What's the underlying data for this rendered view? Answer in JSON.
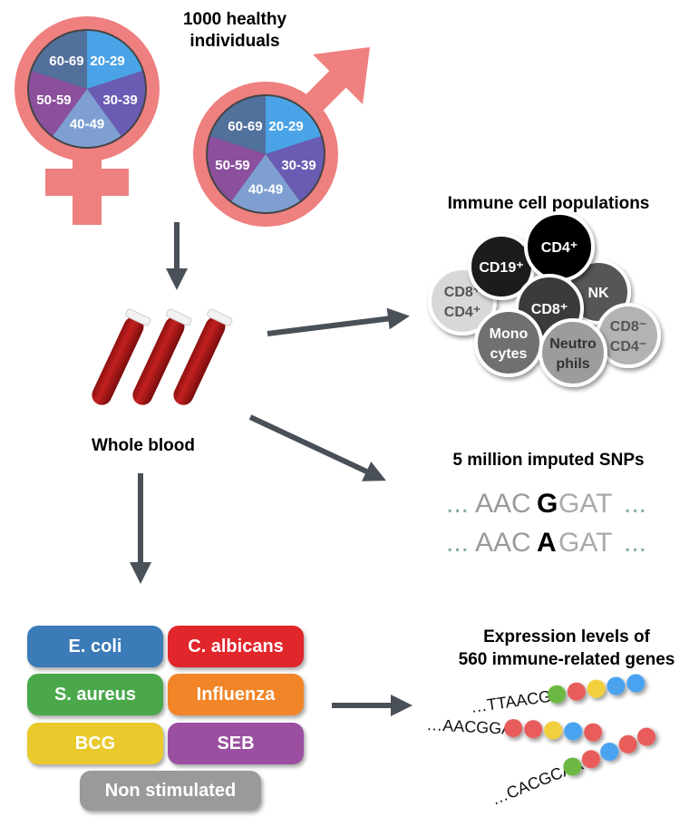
{
  "title": "1000 healthy individuals",
  "title_lines": [
    "1000 healthy",
    "individuals"
  ],
  "age_groups": [
    "20-29",
    "30-39",
    "40-49",
    "50-59",
    "60-69"
  ],
  "age_colors": [
    "#4aa3e6",
    "#6a5cb3",
    "#7f9fd2",
    "#8b4f9c",
    "#52709c"
  ],
  "symbol_color": "#ef8080",
  "arrow_color": "#4a5058",
  "whole_blood": "Whole blood",
  "immune": {
    "title": "Immune cell populations",
    "cells": [
      {
        "label": [
          "CD8⁺",
          "CD4⁺"
        ],
        "fill": "#d8d8d8",
        "text": "#555555"
      },
      {
        "label": [
          "CD19⁺"
        ],
        "fill": "#1f1f1f",
        "text": "#ffffff"
      },
      {
        "label": [
          "NK"
        ],
        "fill": "#565656",
        "text": "#ffffff"
      },
      {
        "label": [
          "CD4⁺"
        ],
        "fill": "#000000",
        "text": "#ffffff"
      },
      {
        "label": [
          "CD8⁺"
        ],
        "fill": "#3a3a3a",
        "text": "#ffffff"
      },
      {
        "label": [
          "CD8⁻",
          "CD4⁻"
        ],
        "fill": "#b3b3b3",
        "text": "#555555"
      },
      {
        "label": [
          "Mono",
          "cytes"
        ],
        "fill": "#6f6f6f",
        "text": "#ffffff"
      },
      {
        "label": [
          "Neutro",
          "phils"
        ],
        "fill": "#9c9c9c",
        "text": "#333333"
      }
    ]
  },
  "snps": {
    "title": "5 million imputed SNPs",
    "seq1": {
      "pre": "AAC",
      "var": "G",
      "post": "GAT"
    },
    "seq2": {
      "pre": "AAC",
      "var": "A",
      "post": "GAT"
    },
    "dots": "..."
  },
  "expression": {
    "title_lines": [
      "Expression levels of",
      "560 immune-related genes"
    ],
    "reads": [
      {
        "seq": "…TTAACGG",
        "beads": [
          "#6cb843",
          "#e85c5c",
          "#f2cf3c",
          "#4aa3f0",
          "#4aa3f0"
        ]
      },
      {
        "seq": "…AACGGAT",
        "beads": [
          "#e85c5c",
          "#e85c5c",
          "#f2cf3c",
          "#4aa3f0",
          "#e85c5c"
        ]
      },
      {
        "seq": "…CACGCAA",
        "beads": [
          "#6cb843",
          "#e85c5c",
          "#4aa3f0",
          "#e85c5c",
          "#e85c5c"
        ]
      }
    ]
  },
  "stimuli": [
    {
      "label": "E. coli",
      "color": "#3b7bb8"
    },
    {
      "label": "C. albicans",
      "color": "#e1262c"
    },
    {
      "label": "S. aureus",
      "color": "#4aa84b"
    },
    {
      "label": "Influenza",
      "color": "#f28528"
    },
    {
      "label": "BCG",
      "color": "#e9c92c"
    },
    {
      "label": "SEB",
      "color": "#9a4fa1"
    },
    {
      "label": "Non stimulated",
      "color": "#9a9a9a"
    }
  ]
}
